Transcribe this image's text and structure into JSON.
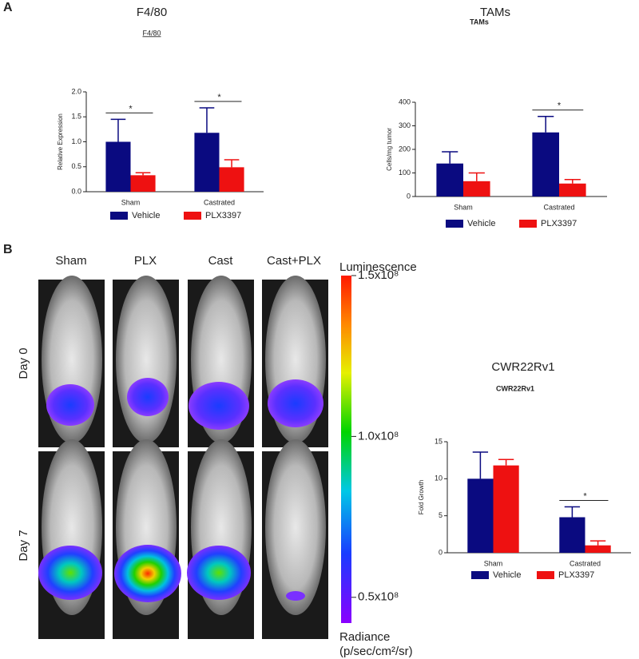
{
  "panels": [
    "A",
    "B"
  ],
  "chart_data": [
    {
      "type": "bar",
      "title": "F4/80",
      "subtitle": "F4/80",
      "ylabel": "Relative Expression",
      "categories": [
        "Sham",
        "Castrated"
      ],
      "series": [
        {
          "name": "Vehicle",
          "color": "#0a0a80",
          "values": [
            1.0,
            1.18
          ],
          "errors": [
            0.45,
            0.5
          ]
        },
        {
          "name": "PLX3397",
          "color": "#ee1111",
          "values": [
            0.33,
            0.49
          ],
          "errors": [
            0.05,
            0.15
          ]
        }
      ],
      "ylim": [
        0,
        2.0
      ],
      "yticks": [
        {
          "value": 0,
          "label": "0.0"
        },
        0.5,
        {
          "value": 1,
          "label": "1.0"
        },
        1.5,
        {
          "value": 2,
          "label": "2.0"
        }
      ],
      "annotations": [
        {
          "text": "*",
          "category": "Sham"
        },
        {
          "text": "*",
          "category": "Castrated"
        }
      ]
    },
    {
      "type": "bar",
      "title": "TAMs",
      "subtitle": "TAMs",
      "ylabel": "Cells/mg tumor",
      "categories": [
        "Sham",
        "Castrated"
      ],
      "series": [
        {
          "name": "Vehicle",
          "color": "#0a0a80",
          "values": [
            140,
            272
          ],
          "errors": [
            50,
            68
          ]
        },
        {
          "name": "PLX3397",
          "color": "#ee1111",
          "values": [
            65,
            55
          ],
          "errors": [
            35,
            17
          ]
        }
      ],
      "ylim": [
        0,
        400
      ],
      "yticks": [
        0,
        100,
        200,
        300,
        400
      ],
      "annotations": [
        {
          "text": "*",
          "category": "Castrated"
        }
      ]
    },
    {
      "type": "bar",
      "title": "CWR22Rv1",
      "subtitle": "CWR22Rv1",
      "ylabel": "Fold Growth",
      "categories": [
        "Sham",
        "Castrated"
      ],
      "series": [
        {
          "name": "Vehicle",
          "color": "#0a0a80",
          "values": [
            10,
            4.8
          ],
          "errors": [
            3.6,
            1.4
          ]
        },
        {
          "name": "PLX3397",
          "color": "#ee1111",
          "values": [
            11.8,
            1.0
          ],
          "errors": [
            0.8,
            0.6
          ]
        }
      ],
      "ylim": [
        0,
        15
      ],
      "yticks": [
        0,
        5,
        10,
        15
      ],
      "annotations": [
        {
          "text": "*",
          "category": "Castrated"
        }
      ]
    }
  ],
  "imaging": {
    "columns": [
      "Sham",
      "PLX",
      "Cast",
      "Cast+PLX"
    ],
    "rows": [
      "Day 0",
      "Day 7"
    ]
  },
  "colorbar": {
    "title": "Luminescence",
    "lim": [
      42000000,
      150000000
    ],
    "ticks": [
      {
        "value": 150000000,
        "label": "1.5x10⁸"
      },
      {
        "value": 100000000,
        "label": "1.0x10⁸"
      },
      {
        "value": 50000000,
        "label": "0.5x10⁸"
      }
    ],
    "caption": [
      "Radiance",
      "(p/sec/cm²/sr)"
    ]
  }
}
